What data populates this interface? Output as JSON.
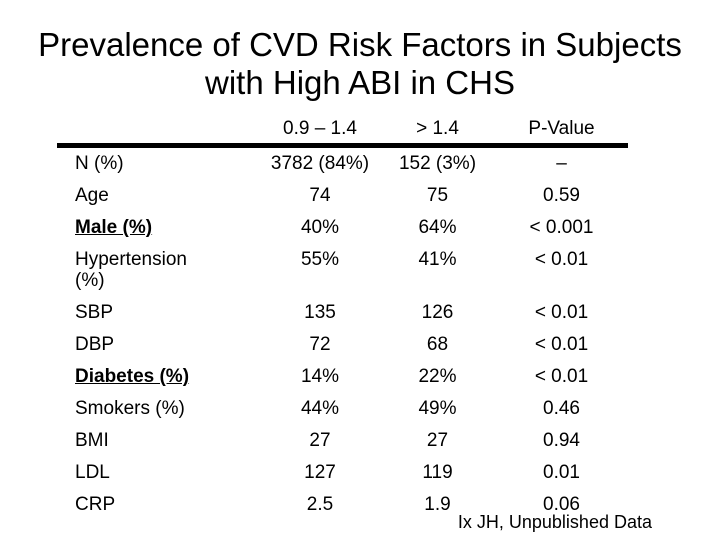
{
  "slide": {
    "title_line1": "Prevalence of CVD Risk Factors in Subjects",
    "title_line2": "with High ABI in CHS",
    "footer": "Ix JH, Unpublished Data"
  },
  "colors": {
    "background": "#ffffff",
    "text": "#000000",
    "header_rule": "#000000"
  },
  "chart_data": {
    "type": "table",
    "title": "Prevalence of CVD Risk Factors in Subjects with High ABI in CHS",
    "columns": [
      "",
      "0.9 – 1.4",
      "> 1.4",
      "P-Value"
    ],
    "rows": [
      {
        "label": "N (%)",
        "abi_normal": "3782 (84%)",
        "abi_high": "152 (3%)",
        "p_value": "–",
        "emphasis": false
      },
      {
        "label": "Age",
        "abi_normal": "74",
        "abi_high": "75",
        "p_value": "0.59",
        "emphasis": false
      },
      {
        "label": "Male (%)",
        "abi_normal": "40%",
        "abi_high": "64%",
        "p_value": "< 0.001",
        "emphasis": true
      },
      {
        "label": "Hypertension (%)",
        "abi_normal": "55%",
        "abi_high": "41%",
        "p_value": "< 0.01",
        "emphasis": false
      },
      {
        "label": "SBP",
        "abi_normal": "135",
        "abi_high": "126",
        "p_value": "< 0.01",
        "emphasis": false
      },
      {
        "label": "DBP",
        "abi_normal": "72",
        "abi_high": "68",
        "p_value": "< 0.01",
        "emphasis": false
      },
      {
        "label": "Diabetes (%)",
        "abi_normal": "14%",
        "abi_high": "22%",
        "p_value": "< 0.01",
        "emphasis": true
      },
      {
        "label": "Smokers (%)",
        "abi_normal": "44%",
        "abi_high": "49%",
        "p_value": "0.46",
        "emphasis": false
      },
      {
        "label": "BMI",
        "abi_normal": "27",
        "abi_high": "27",
        "p_value": "0.94",
        "emphasis": false
      },
      {
        "label": "LDL",
        "abi_normal": "127",
        "abi_high": "119",
        "p_value": "0.01",
        "emphasis": false
      },
      {
        "label": "CRP",
        "abi_normal": "2.5",
        "abi_high": "1.9",
        "p_value": "0.06",
        "emphasis": false
      }
    ]
  }
}
